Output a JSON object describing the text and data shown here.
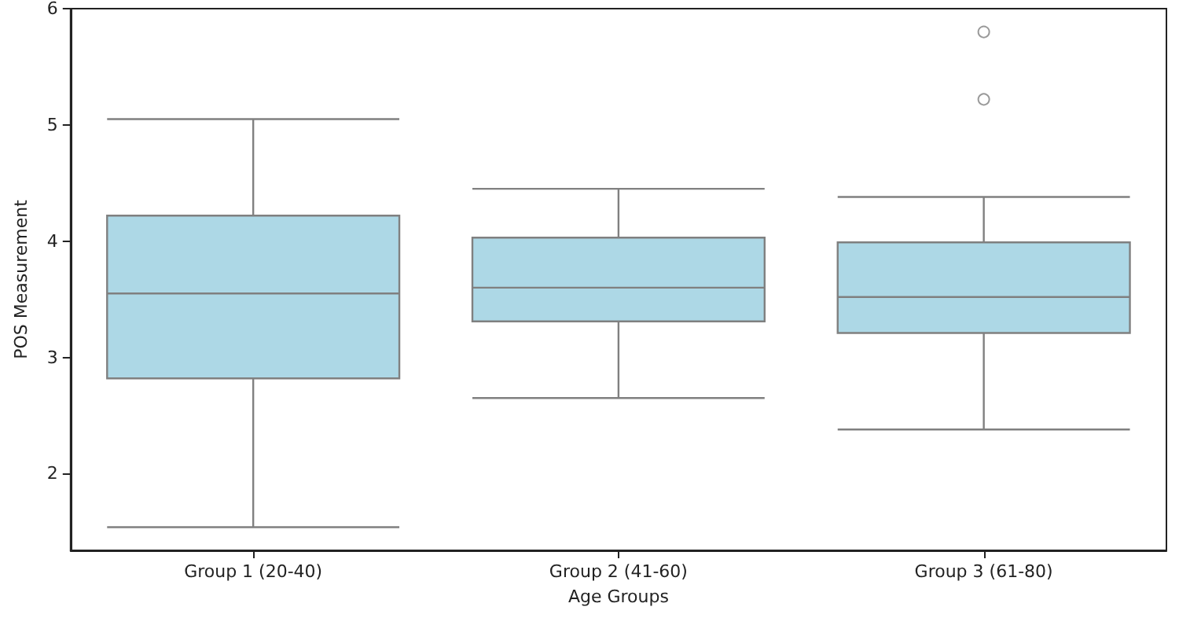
{
  "chart_data": {
    "type": "box",
    "xlabel": "Age Groups",
    "ylabel": "POS Measurement",
    "categories": [
      "Group 1 (20-40)",
      "Group 2 (41-60)",
      "Group 3 (61-80)"
    ],
    "color": "#add8e6",
    "boxes": [
      {
        "low": 1.54,
        "q1": 2.82,
        "median": 3.55,
        "q3": 4.22,
        "high": 5.05
      },
      {
        "low": 2.65,
        "q1": 3.31,
        "median": 3.6,
        "q3": 4.03,
        "high": 4.45
      },
      {
        "low": 2.38,
        "q1": 3.21,
        "median": 3.52,
        "q3": 3.99,
        "high": 4.38,
        "outliers": [
          5.8,
          5.22
        ]
      }
    ],
    "ylim": [
      1.34,
      6
    ],
    "yticks": [
      2,
      3,
      4,
      5,
      6
    ],
    "grid": false
  }
}
